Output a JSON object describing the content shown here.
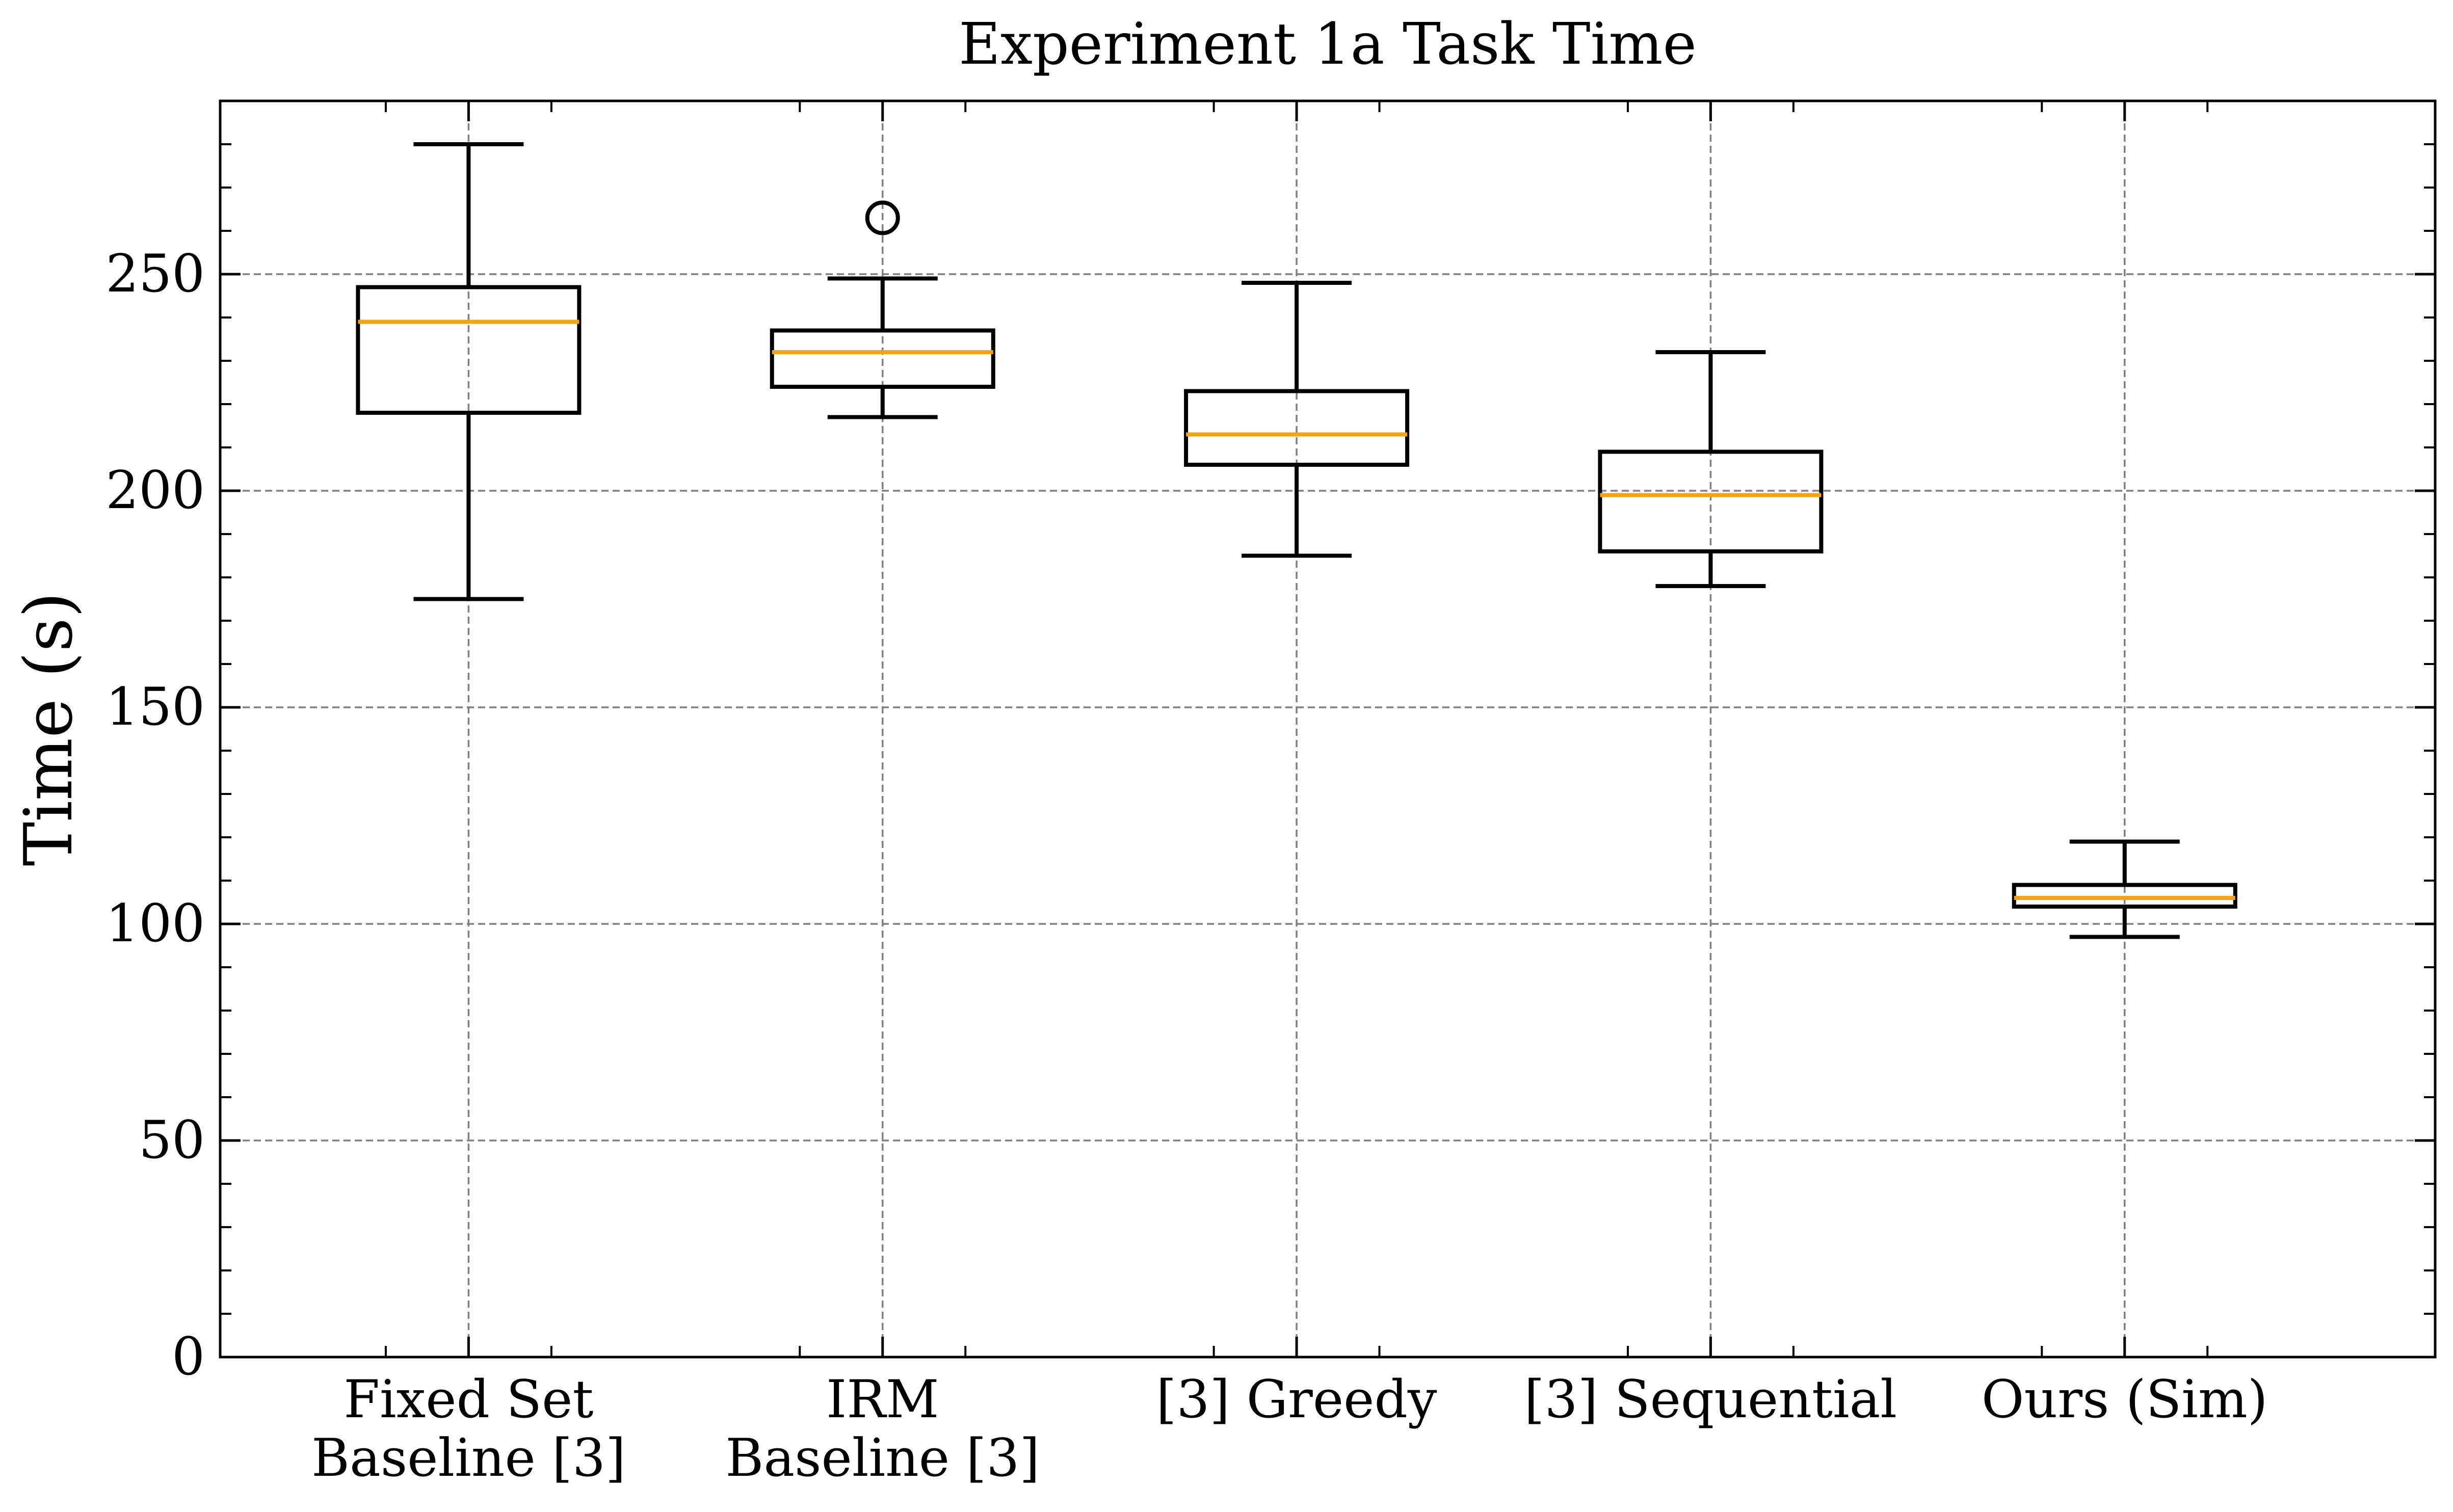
{
  "chart_data": {
    "type": "boxplot",
    "title": "Experiment 1a Task Time",
    "xlabel": "",
    "ylabel": "Time (s)",
    "ylim": [
      0,
      290
    ],
    "yticks": [
      0,
      50,
      100,
      150,
      200,
      250
    ],
    "ytick_labels": [
      "0",
      "50",
      "100",
      "150",
      "200",
      "250"
    ],
    "grid": true,
    "categories": [
      [
        "Fixed Set",
        "Baseline [3]"
      ],
      [
        "IRM",
        "Baseline [3]"
      ],
      [
        "[3] Greedy"
      ],
      [
        "[3] Sequential"
      ],
      [
        "Ours (Sim)"
      ]
    ],
    "boxes": [
      {
        "whisker_low": 175,
        "q1": 218,
        "median": 239,
        "q3": 247,
        "whisker_high": 280,
        "outliers": []
      },
      {
        "whisker_low": 217,
        "q1": 224,
        "median": 232,
        "q3": 237,
        "whisker_high": 249,
        "outliers": [
          263
        ]
      },
      {
        "whisker_low": 185,
        "q1": 206,
        "median": 213,
        "q3": 223,
        "whisker_high": 248,
        "outliers": []
      },
      {
        "whisker_low": 178,
        "q1": 186,
        "median": 199,
        "q3": 209,
        "whisker_high": 232,
        "outliers": []
      },
      {
        "whisker_low": 97,
        "q1": 104,
        "median": 106,
        "q3": 109,
        "whisker_high": 119,
        "outliers": []
      }
    ],
    "colors": {
      "box": "#000000",
      "median": "#f5a30f",
      "grid": "#808080",
      "background": "#ffffff"
    }
  }
}
